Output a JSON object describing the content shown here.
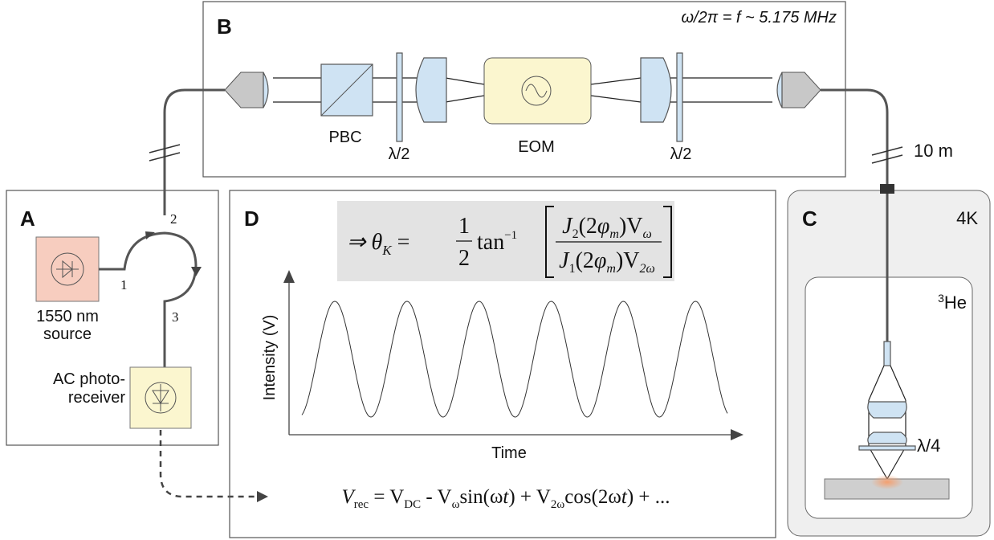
{
  "panel_b": {
    "letter": "B",
    "frequency": "ω/2π = f ~ 5.175 MHz",
    "pbc": "PBC",
    "half_wave_left": "λ/2",
    "eom": "EOM",
    "half_wave_right": "λ/2",
    "fiber_length": "10 m"
  },
  "panel_a": {
    "letter": "A",
    "source": [
      "1550 nm",
      "source"
    ],
    "ports": [
      "1",
      "2",
      "3"
    ],
    "receiver": [
      "AC photo-",
      "receiver"
    ]
  },
  "panel_d": {
    "letter": "D",
    "equation": {
      "lhs": [
        "⇒ θ",
        "K",
        " ="
      ],
      "half": [
        "1",
        "2"
      ],
      "func": [
        "tan",
        "−1"
      ],
      "numerator": [
        "J",
        "2",
        "(2",
        "φ",
        "m",
        ")V",
        "ω"
      ],
      "denominator": [
        "J",
        "1",
        "(2",
        "φ",
        "m",
        ")V",
        "2ω"
      ]
    },
    "y_axis": "Intensity (V)",
    "x_axis": "Time",
    "signal": [
      "V",
      "rec",
      " = V",
      "DC",
      " - V",
      "ω",
      "sin(ω",
      "t",
      ") + V",
      "2ω",
      "cos(2ω",
      "t",
      ") + ..."
    ]
  },
  "panel_c": {
    "letter": "C",
    "outer": "4K",
    "inner": [
      "3",
      "He"
    ],
    "quarter_wave": "λ/4"
  }
}
